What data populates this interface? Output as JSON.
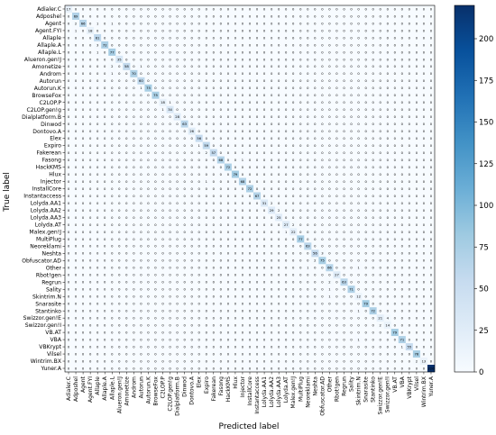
{
  "chart_data": {
    "type": "heatmap",
    "title": "",
    "xlabel": "Predicted label",
    "ylabel": "True label",
    "labels": [
      "Adialer.C",
      "Adposhel",
      "Agent",
      "Agent.FYI",
      "Allaple",
      "Allaple.A",
      "Allaple.L",
      "Alueron.gen!J",
      "Amonetize",
      "Androm",
      "Autorun",
      "Autorun.K",
      "BrowseFox",
      "C2LOP.P",
      "C2LOP.gen!g",
      "Dialplatform.B",
      "Dinwod",
      "Dontovo.A",
      "Elex",
      "Expiro",
      "Fakerean",
      "Fasong",
      "HackKMS",
      "Hlux",
      "Injector",
      "InstallCore",
      "Instantaccess",
      "Lolyda.AA1",
      "Lolyda.AA2",
      "Lolyda.AA3",
      "Lolyda.AT",
      "Malex.gen!J",
      "MultiPlug",
      "Neoreklami",
      "Neshta",
      "Obfuscator.AD",
      "Other",
      "Rbot!gen",
      "Regrun",
      "Sality",
      "Skintrim.N",
      "Snarasite",
      "Stantinko",
      "Swizzor.gen!E",
      "Swizzor.gen!I",
      "VB.AT",
      "VBA",
      "VBKrypt",
      "Vilsel",
      "Wintrim.BX",
      "Yuner.A"
    ],
    "diagonal": [
      17,
      69,
      66,
      18,
      61,
      72,
      77,
      35,
      58,
      70,
      60,
      75,
      75,
      18,
      34,
      28,
      63,
      26,
      56,
      59,
      57,
      68,
      72,
      79,
      68,
      72,
      67,
      31,
      29,
      25,
      27,
      22,
      77,
      63,
      56,
      75,
      66,
      27,
      63,
      71,
      12,
      79,
      72,
      21,
      14,
      79,
      71,
      55,
      76,
      13,
      220
    ],
    "off_diagonal": [
      {
        "row": 2,
        "col": 1,
        "value": 2
      },
      {
        "row": 2,
        "col": 4,
        "value": 1
      },
      {
        "row": 2,
        "col": 6,
        "value": 1
      },
      {
        "row": 3,
        "col": 1,
        "value": 1
      },
      {
        "row": 5,
        "col": 4,
        "value": 3
      },
      {
        "row": 6,
        "col": 4,
        "value": 1
      },
      {
        "row": 8,
        "col": 6,
        "value": 2
      },
      {
        "row": 8,
        "col": 10,
        "value": 1
      },
      {
        "row": 9,
        "col": 6,
        "value": 1
      },
      {
        "row": 11,
        "col": 10,
        "value": 1
      },
      {
        "row": 13,
        "col": 14,
        "value": 1
      },
      {
        "row": 14,
        "col": 13,
        "value": 1
      },
      {
        "row": 19,
        "col": 18,
        "value": 1
      },
      {
        "row": 20,
        "col": 19,
        "value": 2
      },
      {
        "row": 21,
        "col": 24,
        "value": 1
      },
      {
        "row": 24,
        "col": 19,
        "value": 1
      },
      {
        "row": 27,
        "col": 28,
        "value": 2
      },
      {
        "row": 28,
        "col": 29,
        "value": 2
      },
      {
        "row": 30,
        "col": 31,
        "value": 2
      },
      {
        "row": 31,
        "col": 30,
        "value": 1
      },
      {
        "row": 34,
        "col": 35,
        "value": 3
      },
      {
        "row": 35,
        "col": 34,
        "value": 2
      },
      {
        "row": 36,
        "col": 33,
        "value": 1
      },
      {
        "row": 36,
        "col": 40,
        "value": 1
      },
      {
        "row": 38,
        "col": 36,
        "value": 2
      },
      {
        "row": 39,
        "col": 36,
        "value": 1
      },
      {
        "row": 40,
        "col": 36,
        "value": 1
      },
      {
        "row": 42,
        "col": 40,
        "value": 1
      },
      {
        "row": 43,
        "col": 44,
        "value": 4
      },
      {
        "row": 44,
        "col": 43,
        "value": 2
      },
      {
        "row": 46,
        "col": 40,
        "value": 1
      },
      {
        "row": 47,
        "col": 46,
        "value": 1
      },
      {
        "row": 49,
        "col": 48,
        "value": 2
      }
    ],
    "colorbar": {
      "min": 0,
      "max": 220,
      "ticks": [
        0,
        25,
        50,
        75,
        100,
        125,
        150,
        175,
        200
      ],
      "colormap": "Blues"
    },
    "colors": {
      "low": "#f7fbff",
      "high": "#08306b",
      "cell_text_dark": "#222222",
      "cell_text_light": "#ffffff"
    }
  }
}
